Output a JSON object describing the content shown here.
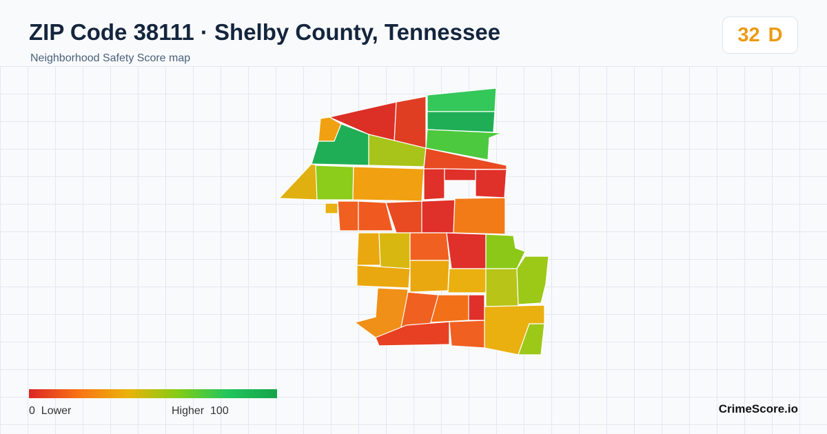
{
  "header": {
    "title": "ZIP Code 38111 · Shelby County, Tennessee",
    "subtitle": "Neighborhood Safety Score map"
  },
  "score": {
    "value": 32,
    "grade": "D"
  },
  "legend": {
    "min": 0,
    "min_label": "Lower",
    "max_label": "Higher",
    "max": 100
  },
  "brand": "CrimeScore.io"
}
